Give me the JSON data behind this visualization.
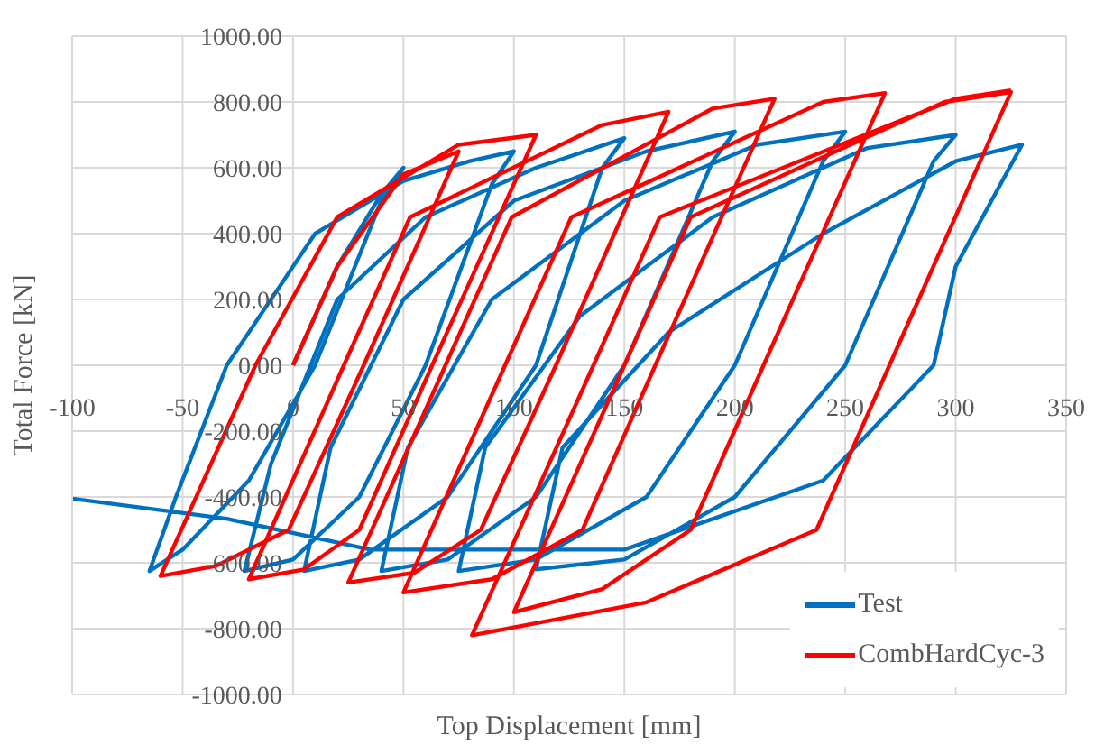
{
  "chart_data": {
    "type": "line",
    "xlabel": "Top Displacement [mm]",
    "ylabel": "Total Force [kN]",
    "xlim": [
      -100,
      350
    ],
    "xticks": [
      -100,
      -50,
      0,
      50,
      100,
      150,
      200,
      250,
      300,
      350
    ],
    "ylim": [
      -1000,
      1000
    ],
    "yticks": [
      {
        "value": -1000,
        "label": "-1000.00"
      },
      {
        "value": -800,
        "label": "-800.00"
      },
      {
        "value": -600,
        "label": "-600.00"
      },
      {
        "value": -400,
        "label": "-400.00"
      },
      {
        "value": -200,
        "label": "-200.00"
      },
      {
        "value": 0,
        "label": "0.00"
      },
      {
        "value": 200,
        "label": "200.00"
      },
      {
        "value": 400,
        "label": "400.00"
      },
      {
        "value": 600,
        "label": "600.00"
      },
      {
        "value": 800,
        "label": "800.00"
      },
      {
        "value": 1000,
        "label": "1000.00"
      }
    ],
    "grid": true,
    "legend": "bottom right",
    "marker": "none",
    "line_style": "solid",
    "series": [
      {
        "name": "Test",
        "color": "#0070c0",
        "x": [
          0,
          20,
          40,
          50,
          40,
          10,
          -20,
          -50,
          -65,
          -53,
          -30,
          10,
          50,
          80,
          100,
          90,
          60,
          30,
          0,
          -22,
          -10,
          20,
          60,
          110,
          150,
          140,
          110,
          70,
          30,
          5,
          17,
          50,
          100,
          160,
          200,
          190,
          150,
          110,
          70,
          40,
          52,
          90,
          150,
          210,
          250,
          240,
          200,
          160,
          110,
          75,
          87,
          130,
          190,
          260,
          300,
          290,
          250,
          200,
          150,
          110,
          122,
          170,
          240,
          300,
          330,
          300,
          290,
          240,
          150,
          35,
          -30,
          -100
        ],
        "values": [
          0,
          300,
          520,
          600,
          500,
          0,
          -350,
          -560,
          -625,
          -400,
          0,
          400,
          560,
          620,
          650,
          550,
          0,
          -400,
          -590,
          -625,
          -300,
          200,
          450,
          600,
          690,
          600,
          0,
          -400,
          -590,
          -625,
          -250,
          200,
          500,
          650,
          710,
          620,
          0,
          -400,
          -590,
          -625,
          -250,
          200,
          500,
          670,
          710,
          620,
          0,
          -400,
          -590,
          -625,
          -250,
          150,
          450,
          660,
          700,
          620,
          0,
          -400,
          -590,
          -620,
          -250,
          100,
          400,
          620,
          670,
          300,
          0,
          -350,
          -560,
          -560,
          -466,
          -405
        ]
      },
      {
        "name": "CombHardCyc-3",
        "color": "#ff0000",
        "x": [
          0,
          20,
          50,
          75,
          32,
          -2,
          -35,
          -60,
          -17,
          20,
          75,
          110,
          63,
          30,
          5,
          -20,
          23,
          53,
          140,
          170,
          119,
          85,
          55,
          25,
          69,
          99,
          190,
          218,
          164,
          131,
          90,
          50,
          96,
          126,
          240,
          268,
          213,
          180,
          140,
          100,
          150,
          180,
          295,
          325,
          270,
          237,
          160,
          81,
          136,
          166,
          300,
          325
        ],
        "values": [
          0,
          300,
          580,
          650,
          0,
          -500,
          -610,
          -640,
          0,
          450,
          670,
          700,
          0,
          -500,
          -620,
          -650,
          0,
          450,
          730,
          770,
          0,
          -500,
          -630,
          -660,
          0,
          450,
          780,
          810,
          0,
          -500,
          -650,
          -690,
          0,
          450,
          800,
          827,
          0,
          -500,
          -680,
          -750,
          0,
          450,
          800,
          830,
          0,
          -500,
          -720,
          -820,
          0,
          450,
          810,
          835
        ]
      }
    ]
  }
}
